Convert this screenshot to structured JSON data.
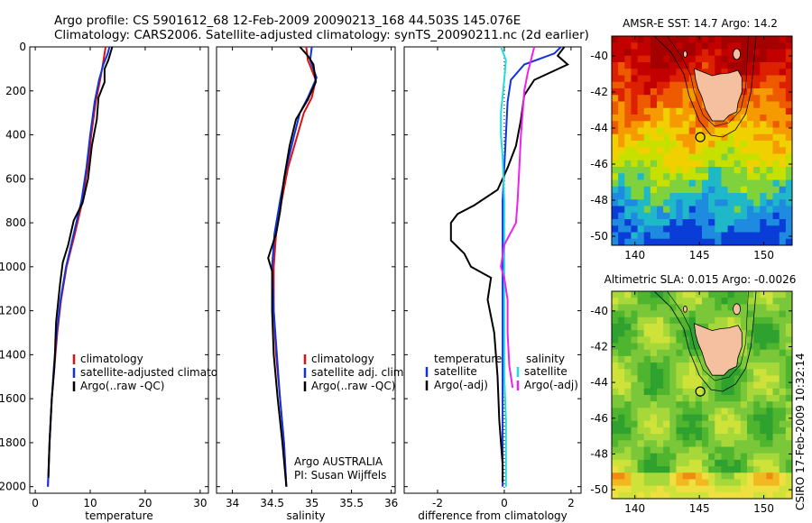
{
  "header": {
    "line1": "Argo profile: CS 5901612_68 12-Feb-2009 20090213_168 44.503S 145.076E",
    "line2": "Climatology: CARS2006. Satellite-adjusted climatology: synTS_20090211.nc (2d earlier)"
  },
  "side_credit": "CSIRO 17-Feb-2009 10:32:14",
  "colors": {
    "climatology": "#dd1111",
    "satellite": "#1133dd",
    "argo": "#000000",
    "salinity_satellite": "#22dddd",
    "salinity_argo": "#ee22ee"
  },
  "chart_data": [
    {
      "id": "temperature",
      "type": "line",
      "xlabel": "temperature",
      "xlim": [
        -1,
        31.5
      ],
      "ylim": [
        2030,
        0
      ],
      "xticks": [
        0,
        10,
        20,
        30
      ],
      "yticks": [
        0,
        200,
        400,
        600,
        800,
        1000,
        1200,
        1400,
        1600,
        1800,
        2000
      ],
      "legend": {
        "placement": "bottom-right",
        "entries": [
          "climatology",
          "satellite-adjusted climatology",
          "Argo(..raw -QC)"
        ]
      },
      "series": [
        {
          "name": "climatology",
          "color_key": "climatology",
          "points": [
            [
              12.8,
              0
            ],
            [
              12.6,
              30
            ],
            [
              12.3,
              80
            ],
            [
              11.8,
              150
            ],
            [
              11.0,
              250
            ],
            [
              10.2,
              400
            ],
            [
              9.5,
              550
            ],
            [
              8.6,
              700
            ],
            [
              7.2,
              850
            ],
            [
              5.7,
              1000
            ],
            [
              4.7,
              1150
            ],
            [
              4.0,
              1300
            ],
            [
              3.5,
              1450
            ],
            [
              3.0,
              1600
            ],
            [
              2.6,
              1800
            ],
            [
              2.3,
              2000
            ]
          ]
        },
        {
          "name": "satellite-adjusted climatology",
          "color_key": "satellite",
          "points": [
            [
              13.5,
              0
            ],
            [
              13.2,
              30
            ],
            [
              12.4,
              80
            ],
            [
              11.6,
              150
            ],
            [
              10.8,
              250
            ],
            [
              10.0,
              400
            ],
            [
              9.3,
              550
            ],
            [
              8.4,
              700
            ],
            [
              7.0,
              850
            ],
            [
              5.6,
              1000
            ],
            [
              4.6,
              1150
            ],
            [
              3.9,
              1300
            ],
            [
              3.4,
              1450
            ],
            [
              3.0,
              1600
            ],
            [
              2.6,
              1800
            ],
            [
              2.3,
              2000
            ]
          ]
        },
        {
          "name": "Argo(..raw -QC)",
          "color_key": "argo",
          "points": [
            [
              14.0,
              0
            ],
            [
              13.7,
              25
            ],
            [
              13.3,
              60
            ],
            [
              12.6,
              100
            ],
            [
              12.6,
              160
            ],
            [
              11.5,
              230
            ],
            [
              11.2,
              330
            ],
            [
              10.3,
              450
            ],
            [
              9.6,
              600
            ],
            [
              8.6,
              710
            ],
            [
              7.0,
              790
            ],
            [
              6.0,
              900
            ],
            [
              5.0,
              980
            ],
            [
              4.5,
              1080
            ],
            [
              3.8,
              1250
            ],
            [
              3.5,
              1450
            ],
            [
              3.0,
              1600
            ],
            [
              2.6,
              1800
            ],
            [
              2.4,
              1960
            ]
          ]
        }
      ]
    },
    {
      "id": "salinity",
      "type": "line",
      "xlabel": "salinity",
      "xlim": [
        33.8,
        36.05
      ],
      "ylim": [
        2030,
        0
      ],
      "xticks": [
        34,
        34.5,
        35,
        35.5,
        36
      ],
      "xtick_labels": [
        "34",
        "34.5",
        "35",
        "35.5",
        "36"
      ],
      "legend": {
        "placement": "bottom-right",
        "entries": [
          "climatology",
          "satellite adj. clim.",
          "Argo(..raw -QC)"
        ]
      },
      "annotation": [
        "Argo AUSTRALIA",
        "PI: Susan Wijffels"
      ],
      "series": [
        {
          "name": "climatology",
          "color_key": "climatology",
          "points": [
            [
              34.93,
              0
            ],
            [
              34.95,
              60
            ],
            [
              35.05,
              150
            ],
            [
              35.0,
              230
            ],
            [
              34.9,
              300
            ],
            [
              34.82,
              400
            ],
            [
              34.7,
              550
            ],
            [
              34.62,
              700
            ],
            [
              34.55,
              850
            ],
            [
              34.52,
              1000
            ],
            [
              34.52,
              1200
            ],
            [
              34.55,
              1400
            ],
            [
              34.6,
              1600
            ],
            [
              34.65,
              1800
            ],
            [
              34.68,
              2000
            ]
          ]
        },
        {
          "name": "satellite adj. clim.",
          "color_key": "satellite",
          "points": [
            [
              35.0,
              0
            ],
            [
              34.98,
              60
            ],
            [
              35.06,
              140
            ],
            [
              34.95,
              230
            ],
            [
              34.85,
              300
            ],
            [
              34.78,
              400
            ],
            [
              34.68,
              550
            ],
            [
              34.6,
              700
            ],
            [
              34.53,
              850
            ],
            [
              34.5,
              1000
            ],
            [
              34.52,
              1200
            ],
            [
              34.56,
              1400
            ],
            [
              34.6,
              1600
            ],
            [
              34.65,
              1800
            ],
            [
              34.68,
              2000
            ]
          ]
        },
        {
          "name": "Argo(..raw -QC)",
          "color_key": "argo",
          "points": [
            [
              34.85,
              0
            ],
            [
              34.95,
              40
            ],
            [
              35.02,
              80
            ],
            [
              35.05,
              160
            ],
            [
              34.95,
              240
            ],
            [
              34.8,
              330
            ],
            [
              34.72,
              450
            ],
            [
              34.65,
              600
            ],
            [
              34.6,
              750
            ],
            [
              34.55,
              850
            ],
            [
              34.45,
              960
            ],
            [
              34.5,
              1020
            ],
            [
              34.5,
              1200
            ],
            [
              34.52,
              1400
            ],
            [
              34.57,
              1600
            ],
            [
              34.63,
              1800
            ],
            [
              34.68,
              2000
            ]
          ]
        }
      ]
    },
    {
      "id": "difference",
      "type": "line",
      "xlabel": "difference from climatology",
      "xlim": [
        -3.0,
        2.3
      ],
      "ylim": [
        2030,
        0
      ],
      "xticks": [
        -2,
        0,
        2
      ],
      "legend_left": {
        "placement": "bottom-left",
        "heading": "temperature",
        "entries": [
          "satellite",
          "Argo(-adj)"
        ]
      },
      "legend_right": {
        "placement": "bottom-right",
        "heading": "salinity",
        "entries": [
          "satellite",
          "Argo(-adj)"
        ]
      },
      "series": [
        {
          "name": "temperature satellite",
          "color_key": "satellite",
          "points": [
            [
              1.7,
              0
            ],
            [
              1.5,
              30
            ],
            [
              0.6,
              80
            ],
            [
              0.2,
              150
            ],
            [
              0.1,
              250
            ],
            [
              0.05,
              400
            ],
            [
              0.0,
              550
            ],
            [
              -0.05,
              700
            ],
            [
              -0.05,
              850
            ],
            [
              -0.05,
              1000
            ],
            [
              -0.05,
              1200
            ],
            [
              -0.05,
              1400
            ],
            [
              -0.05,
              1600
            ],
            [
              -0.05,
              1800
            ],
            [
              -0.05,
              2000
            ]
          ]
        },
        {
          "name": "temperature Argo(-adj)",
          "color_key": "argo",
          "points": [
            [
              1.8,
              0
            ],
            [
              1.6,
              40
            ],
            [
              1.9,
              80
            ],
            [
              0.9,
              150
            ],
            [
              0.6,
              220
            ],
            [
              0.5,
              330
            ],
            [
              0.35,
              450
            ],
            [
              0.1,
              550
            ],
            [
              -0.2,
              650
            ],
            [
              -0.9,
              720
            ],
            [
              -1.4,
              760
            ],
            [
              -1.6,
              800
            ],
            [
              -1.6,
              880
            ],
            [
              -1.2,
              940
            ],
            [
              -1.0,
              1000
            ],
            [
              -0.4,
              1050
            ],
            [
              -0.5,
              1150
            ],
            [
              -0.3,
              1300
            ],
            [
              -0.2,
              1500
            ],
            [
              -0.15,
              1700
            ],
            [
              -0.05,
              1900
            ],
            [
              -0.05,
              1980
            ]
          ]
        },
        {
          "name": "salinity satellite",
          "color_key": "salinity_satellite",
          "points": [
            [
              -0.1,
              0
            ],
            [
              0.05,
              60
            ],
            [
              0.0,
              150
            ],
            [
              -0.1,
              300
            ],
            [
              -0.1,
              400
            ],
            [
              -0.05,
              500
            ],
            [
              0.0,
              700
            ],
            [
              0.0,
              900
            ],
            [
              0.0,
              1100
            ],
            [
              0.0,
              1300
            ],
            [
              0.0,
              1500
            ],
            [
              0.05,
              1700
            ],
            [
              0.05,
              1900
            ],
            [
              0.05,
              2000
            ]
          ]
        },
        {
          "name": "salinity Argo(-adj)",
          "color_key": "salinity_argo",
          "points": [
            [
              0.9,
              0
            ],
            [
              0.8,
              60
            ],
            [
              0.7,
              120
            ],
            [
              0.6,
              200
            ],
            [
              0.55,
              300
            ],
            [
              0.5,
              400
            ],
            [
              0.45,
              550
            ],
            [
              0.4,
              700
            ],
            [
              0.35,
              800
            ],
            [
              0.0,
              900
            ],
            [
              -0.1,
              1000
            ],
            [
              0.0,
              1050
            ],
            [
              0.1,
              1150
            ],
            [
              0.1,
              1300
            ],
            [
              0.15,
              1450
            ],
            [
              0.25,
              1550
            ]
          ]
        }
      ]
    },
    {
      "id": "sst-map",
      "type": "heatmap",
      "title": "AMSR-E SST: 14.7 Argo: 14.2",
      "xticks": [
        140,
        145,
        150
      ],
      "yticks": [
        -40,
        -42,
        -44,
        -46,
        -48,
        -50
      ],
      "xlim": [
        138.2,
        152.2
      ],
      "ylim": [
        -50.5,
        -38.9
      ],
      "argo_marker": {
        "lon": 145.076,
        "lat": -44.503
      },
      "color_levels_by_row": [
        "red",
        "red",
        "red",
        "orange-red",
        "orange",
        "yellow",
        "yellow-green",
        "green",
        "cyan",
        "blue"
      ]
    },
    {
      "id": "sla-map",
      "type": "heatmap",
      "title": "Altimetric SLA: 0.015 Argo: -0.0026",
      "xticks": [
        140,
        145,
        150
      ],
      "yticks": [
        -40,
        -42,
        -44,
        -46,
        -48,
        -50
      ],
      "xlim": [
        138.2,
        152.2
      ],
      "ylim": [
        -50.5,
        -38.9
      ],
      "argo_marker": {
        "lon": 145.076,
        "lat": -44.503
      },
      "color_levels_by_row": [
        "green",
        "yellow-green",
        "green",
        "yellow-green",
        "green",
        "yellow",
        "green",
        "orange"
      ]
    }
  ]
}
